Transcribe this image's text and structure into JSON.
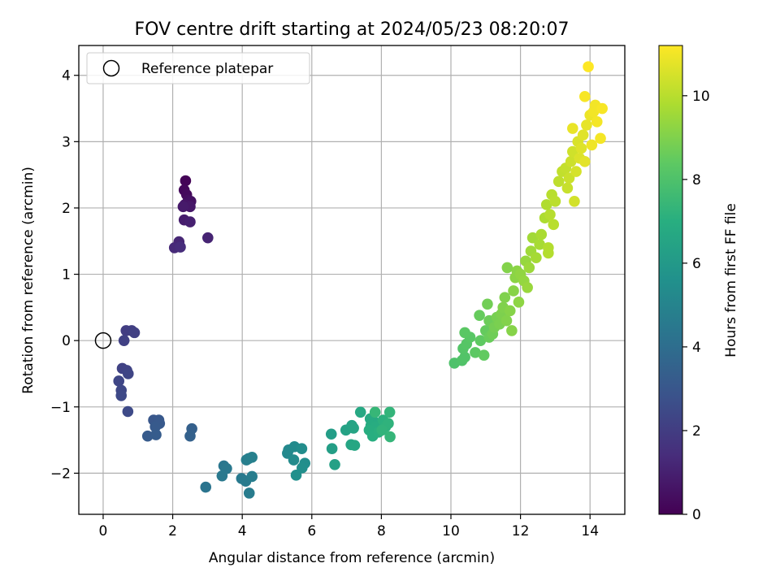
{
  "chart_data": {
    "type": "scatter",
    "title": "FOV centre drift starting at 2024/05/23 08:20:07",
    "xlabel": "Angular distance from reference (arcmin)",
    "ylabel": "Rotation from reference (arcmin)",
    "colorbar_label": "Hours from first FF file",
    "xlim": [
      -0.7,
      15.0
    ],
    "ylim": [
      -2.62,
      4.45
    ],
    "clim": [
      0,
      11.2
    ],
    "x_ticks": [
      0,
      2,
      4,
      6,
      8,
      10,
      12,
      14
    ],
    "y_ticks": [
      -2,
      -1,
      0,
      1,
      2,
      3,
      4
    ],
    "colorbar_ticks": [
      0,
      2,
      4,
      6,
      8,
      10
    ],
    "grid": true,
    "colormap": "viridis",
    "legend": {
      "location": "top-left",
      "entries": [
        "Reference platepar"
      ]
    },
    "reference_point": {
      "x": 0.0,
      "y": 0.0
    },
    "points": [
      {
        "x": 2.37,
        "y": 2.41,
        "h": 0.1
      },
      {
        "x": 2.33,
        "y": 2.27,
        "h": 0.2
      },
      {
        "x": 2.4,
        "y": 2.2,
        "h": 0.3
      },
      {
        "x": 2.45,
        "y": 2.12,
        "h": 0.4
      },
      {
        "x": 2.52,
        "y": 2.1,
        "h": 0.5
      },
      {
        "x": 2.35,
        "y": 2.05,
        "h": 0.6
      },
      {
        "x": 2.5,
        "y": 2.02,
        "h": 0.7
      },
      {
        "x": 2.3,
        "y": 2.02,
        "h": 0.8
      },
      {
        "x": 2.33,
        "y": 1.82,
        "h": 0.9
      },
      {
        "x": 2.5,
        "y": 1.79,
        "h": 1.0
      },
      {
        "x": 3.01,
        "y": 1.55,
        "h": 1.1
      },
      {
        "x": 2.18,
        "y": 1.49,
        "h": 1.2
      },
      {
        "x": 2.05,
        "y": 1.4,
        "h": 1.3
      },
      {
        "x": 2.22,
        "y": 1.41,
        "h": 1.4
      },
      {
        "x": 0.66,
        "y": 0.15,
        "h": 2.0
      },
      {
        "x": 0.82,
        "y": 0.15,
        "h": 2.05
      },
      {
        "x": 0.9,
        "y": 0.12,
        "h": 2.1
      },
      {
        "x": 0.6,
        "y": 0.0,
        "h": 2.15
      },
      {
        "x": 0.55,
        "y": -0.42,
        "h": 2.2
      },
      {
        "x": 0.68,
        "y": -0.45,
        "h": 2.25
      },
      {
        "x": 0.72,
        "y": -0.5,
        "h": 2.3
      },
      {
        "x": 0.45,
        "y": -0.61,
        "h": 2.35
      },
      {
        "x": 0.52,
        "y": -0.75,
        "h": 2.4
      },
      {
        "x": 0.52,
        "y": -0.83,
        "h": 2.45
      },
      {
        "x": 0.71,
        "y": -1.07,
        "h": 2.5
      },
      {
        "x": 1.45,
        "y": -1.2,
        "h": 3.0
      },
      {
        "x": 1.6,
        "y": -1.2,
        "h": 3.05
      },
      {
        "x": 1.62,
        "y": -1.25,
        "h": 3.1
      },
      {
        "x": 1.5,
        "y": -1.3,
        "h": 3.15
      },
      {
        "x": 1.28,
        "y": -1.44,
        "h": 3.2
      },
      {
        "x": 1.52,
        "y": -1.42,
        "h": 3.25
      },
      {
        "x": 2.55,
        "y": -1.33,
        "h": 3.4
      },
      {
        "x": 2.5,
        "y": -1.44,
        "h": 3.45
      },
      {
        "x": 2.95,
        "y": -2.21,
        "h": 4.3
      },
      {
        "x": 3.47,
        "y": -1.89,
        "h": 4.4
      },
      {
        "x": 3.55,
        "y": -1.93,
        "h": 4.45
      },
      {
        "x": 3.42,
        "y": -2.04,
        "h": 4.5
      },
      {
        "x": 3.98,
        "y": -2.08,
        "h": 4.55
      },
      {
        "x": 4.1,
        "y": -2.12,
        "h": 4.6
      },
      {
        "x": 4.2,
        "y": -2.3,
        "h": 4.65
      },
      {
        "x": 4.28,
        "y": -2.05,
        "h": 4.7
      },
      {
        "x": 4.12,
        "y": -1.8,
        "h": 4.75
      },
      {
        "x": 4.18,
        "y": -1.78,
        "h": 4.8
      },
      {
        "x": 4.28,
        "y": -1.76,
        "h": 4.85
      },
      {
        "x": 5.3,
        "y": -1.7,
        "h": 5.2
      },
      {
        "x": 5.33,
        "y": -1.65,
        "h": 5.25
      },
      {
        "x": 5.5,
        "y": -1.6,
        "h": 5.3
      },
      {
        "x": 5.48,
        "y": -1.8,
        "h": 5.35
      },
      {
        "x": 5.71,
        "y": -1.63,
        "h": 5.4
      },
      {
        "x": 5.8,
        "y": -1.85,
        "h": 5.45
      },
      {
        "x": 5.72,
        "y": -1.92,
        "h": 5.5
      },
      {
        "x": 5.55,
        "y": -2.03,
        "h": 5.55
      },
      {
        "x": 6.56,
        "y": -1.41,
        "h": 6.2
      },
      {
        "x": 6.58,
        "y": -1.63,
        "h": 6.25
      },
      {
        "x": 6.66,
        "y": -1.87,
        "h": 6.3
      },
      {
        "x": 6.98,
        "y": -1.35,
        "h": 6.4
      },
      {
        "x": 7.15,
        "y": -1.28,
        "h": 6.45
      },
      {
        "x": 7.2,
        "y": -1.32,
        "h": 6.5
      },
      {
        "x": 7.13,
        "y": -1.57,
        "h": 6.55
      },
      {
        "x": 7.23,
        "y": -1.58,
        "h": 6.6
      },
      {
        "x": 7.4,
        "y": -1.08,
        "h": 6.7
      },
      {
        "x": 7.68,
        "y": -1.18,
        "h": 6.75
      },
      {
        "x": 7.78,
        "y": -1.22,
        "h": 6.8
      },
      {
        "x": 7.7,
        "y": -1.28,
        "h": 6.85
      },
      {
        "x": 7.85,
        "y": -1.3,
        "h": 6.9
      },
      {
        "x": 7.65,
        "y": -1.35,
        "h": 6.95
      },
      {
        "x": 7.75,
        "y": -1.44,
        "h": 7.0
      },
      {
        "x": 7.92,
        "y": -1.38,
        "h": 7.05
      },
      {
        "x": 8.05,
        "y": -1.2,
        "h": 7.1
      },
      {
        "x": 8.12,
        "y": -1.3,
        "h": 7.15
      },
      {
        "x": 8.2,
        "y": -1.25,
        "h": 7.2
      },
      {
        "x": 8.02,
        "y": -1.35,
        "h": 7.25
      },
      {
        "x": 8.24,
        "y": -1.08,
        "h": 7.3
      },
      {
        "x": 8.25,
        "y": -1.45,
        "h": 7.35
      },
      {
        "x": 7.82,
        "y": -1.08,
        "h": 7.4
      },
      {
        "x": 10.1,
        "y": -0.34,
        "h": 8.0
      },
      {
        "x": 10.32,
        "y": -0.3,
        "h": 8.05
      },
      {
        "x": 10.4,
        "y": -0.25,
        "h": 8.1
      },
      {
        "x": 10.35,
        "y": -0.12,
        "h": 8.15
      },
      {
        "x": 10.45,
        "y": -0.05,
        "h": 8.2
      },
      {
        "x": 10.55,
        "y": 0.05,
        "h": 8.25
      },
      {
        "x": 10.4,
        "y": 0.12,
        "h": 8.3
      },
      {
        "x": 10.7,
        "y": -0.18,
        "h": 8.35
      },
      {
        "x": 10.85,
        "y": 0.0,
        "h": 8.4
      },
      {
        "x": 10.95,
        "y": -0.22,
        "h": 8.45
      },
      {
        "x": 11.0,
        "y": 0.15,
        "h": 8.5
      },
      {
        "x": 10.82,
        "y": 0.38,
        "h": 8.55
      },
      {
        "x": 11.1,
        "y": 0.05,
        "h": 8.6
      },
      {
        "x": 11.1,
        "y": 0.3,
        "h": 8.65
      },
      {
        "x": 11.2,
        "y": 0.1,
        "h": 8.7
      },
      {
        "x": 11.05,
        "y": 0.55,
        "h": 8.75
      },
      {
        "x": 11.25,
        "y": 0.2,
        "h": 8.8
      },
      {
        "x": 11.32,
        "y": 0.35,
        "h": 8.85
      },
      {
        "x": 11.4,
        "y": 0.25,
        "h": 8.9
      },
      {
        "x": 11.45,
        "y": 0.4,
        "h": 8.95
      },
      {
        "x": 11.5,
        "y": 0.5,
        "h": 9.0
      },
      {
        "x": 11.55,
        "y": 0.65,
        "h": 9.0
      },
      {
        "x": 11.6,
        "y": 0.3,
        "h": 9.05
      },
      {
        "x": 11.62,
        "y": 1.1,
        "h": 9.05
      },
      {
        "x": 11.7,
        "y": 0.45,
        "h": 9.1
      },
      {
        "x": 11.75,
        "y": 0.15,
        "h": 9.1
      },
      {
        "x": 11.8,
        "y": 0.75,
        "h": 9.15
      },
      {
        "x": 11.85,
        "y": 0.95,
        "h": 9.2
      },
      {
        "x": 11.9,
        "y": 1.05,
        "h": 9.2
      },
      {
        "x": 11.95,
        "y": 0.58,
        "h": 9.25
      },
      {
        "x": 12.0,
        "y": 1.0,
        "h": 9.3
      },
      {
        "x": 12.1,
        "y": 0.9,
        "h": 9.35
      },
      {
        "x": 12.15,
        "y": 1.2,
        "h": 9.4
      },
      {
        "x": 12.2,
        "y": 0.8,
        "h": 9.45
      },
      {
        "x": 12.25,
        "y": 1.1,
        "h": 9.5
      },
      {
        "x": 12.3,
        "y": 1.35,
        "h": 9.55
      },
      {
        "x": 12.35,
        "y": 1.55,
        "h": 9.6
      },
      {
        "x": 12.45,
        "y": 1.25,
        "h": 9.65
      },
      {
        "x": 12.55,
        "y": 1.45,
        "h": 9.7
      },
      {
        "x": 12.6,
        "y": 1.6,
        "h": 9.75
      },
      {
        "x": 12.7,
        "y": 1.85,
        "h": 9.8
      },
      {
        "x": 12.75,
        "y": 2.05,
        "h": 9.85
      },
      {
        "x": 12.8,
        "y": 1.4,
        "h": 9.9
      },
      {
        "x": 12.8,
        "y": 1.32,
        "h": 9.9
      },
      {
        "x": 12.85,
        "y": 1.9,
        "h": 9.95
      },
      {
        "x": 12.9,
        "y": 2.2,
        "h": 10.0
      },
      {
        "x": 12.95,
        "y": 1.75,
        "h": 10.0
      },
      {
        "x": 13.0,
        "y": 2.1,
        "h": 10.05
      },
      {
        "x": 13.1,
        "y": 2.4,
        "h": 10.1
      },
      {
        "x": 13.2,
        "y": 2.55,
        "h": 10.15
      },
      {
        "x": 13.3,
        "y": 2.6,
        "h": 10.2
      },
      {
        "x": 13.35,
        "y": 2.3,
        "h": 10.25
      },
      {
        "x": 13.4,
        "y": 2.45,
        "h": 10.3
      },
      {
        "x": 13.45,
        "y": 2.7,
        "h": 10.35
      },
      {
        "x": 13.5,
        "y": 2.85,
        "h": 10.4
      },
      {
        "x": 13.55,
        "y": 2.1,
        "h": 10.45
      },
      {
        "x": 13.6,
        "y": 2.55,
        "h": 10.5
      },
      {
        "x": 13.65,
        "y": 3.0,
        "h": 10.55
      },
      {
        "x": 13.7,
        "y": 2.75,
        "h": 10.6
      },
      {
        "x": 13.75,
        "y": 2.9,
        "h": 10.65
      },
      {
        "x": 13.8,
        "y": 3.1,
        "h": 10.7
      },
      {
        "x": 13.85,
        "y": 2.7,
        "h": 10.75
      },
      {
        "x": 13.9,
        "y": 3.25,
        "h": 10.8
      },
      {
        "x": 13.5,
        "y": 3.2,
        "h": 10.85
      },
      {
        "x": 14.0,
        "y": 3.4,
        "h": 10.9
      },
      {
        "x": 14.05,
        "y": 2.95,
        "h": 10.95
      },
      {
        "x": 14.1,
        "y": 3.45,
        "h": 11.0
      },
      {
        "x": 14.15,
        "y": 3.55,
        "h": 11.0
      },
      {
        "x": 14.2,
        "y": 3.3,
        "h": 11.05
      },
      {
        "x": 14.3,
        "y": 3.05,
        "h": 11.05
      },
      {
        "x": 14.35,
        "y": 3.5,
        "h": 11.1
      },
      {
        "x": 13.85,
        "y": 3.68,
        "h": 11.1
      },
      {
        "x": 13.95,
        "y": 4.13,
        "h": 11.2
      }
    ]
  }
}
